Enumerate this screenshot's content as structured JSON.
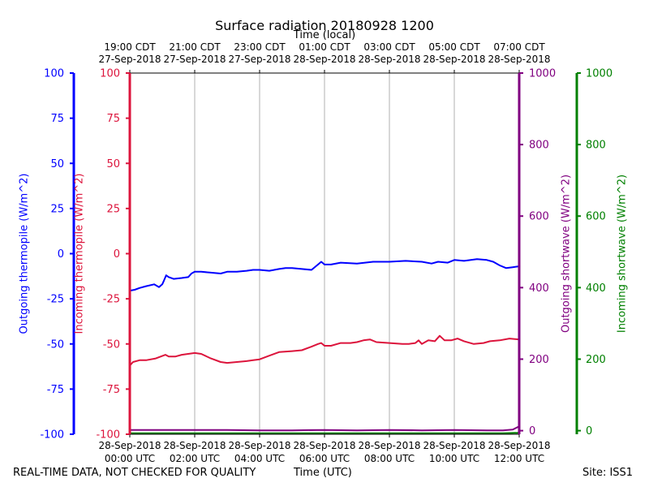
{
  "footer": {
    "disclaimer": "REAL-TIME DATA, NOT CHECKED FOR QUALITY",
    "xlabel": "Time (UTC)",
    "site": "Site: ISS1"
  },
  "chart_data": {
    "type": "line",
    "title": "Surface radiation 20180928 1200",
    "top_axis_label": "Time (local)",
    "xlabel": "Time (UTC)",
    "x_unit": "hours since 28-Sep-2018 00:00 UTC",
    "xlim": [
      0,
      12
    ],
    "grid": {
      "x": true,
      "y": false
    },
    "x_ticks_utc": [
      {
        "x": 0,
        "line1": "28-Sep-2018",
        "line2": "00:00 UTC"
      },
      {
        "x": 2,
        "line1": "28-Sep-2018",
        "line2": "02:00 UTC"
      },
      {
        "x": 4,
        "line1": "28-Sep-2018",
        "line2": "04:00 UTC"
      },
      {
        "x": 6,
        "line1": "28-Sep-2018",
        "line2": "06:00 UTC"
      },
      {
        "x": 8,
        "line1": "28-Sep-2018",
        "line2": "08:00 UTC"
      },
      {
        "x": 10,
        "line1": "28-Sep-2018",
        "line2": "10:00 UTC"
      },
      {
        "x": 12,
        "line1": "28-Sep-2018",
        "line2": "12:00 UTC"
      }
    ],
    "x_ticks_local": [
      {
        "x": 0,
        "line1": "19:00 CDT",
        "line2": "27-Sep-2018"
      },
      {
        "x": 2,
        "line1": "21:00 CDT",
        "line2": "27-Sep-2018"
      },
      {
        "x": 4,
        "line1": "23:00 CDT",
        "line2": "27-Sep-2018"
      },
      {
        "x": 6,
        "line1": "01:00 CDT",
        "line2": "28-Sep-2018"
      },
      {
        "x": 8,
        "line1": "03:00 CDT",
        "line2": "28-Sep-2018"
      },
      {
        "x": 10,
        "line1": "05:00 CDT",
        "line2": "28-Sep-2018"
      },
      {
        "x": 12,
        "line1": "07:00 CDT",
        "line2": "28-Sep-2018"
      }
    ],
    "axes": [
      {
        "id": "out_thermo",
        "label": "Outgoing thermopile (W/m^2)",
        "color": "#0000ff",
        "ylim": [
          -100,
          100
        ],
        "ticks": [
          100,
          75,
          50,
          25,
          0,
          -25,
          -50,
          -75,
          -100
        ]
      },
      {
        "id": "in_thermo",
        "label": "Incoming thermopile (W/m^2)",
        "color": "#dc143c",
        "ylim": [
          -100,
          100
        ],
        "ticks": [
          100,
          75,
          50,
          25,
          0,
          -25,
          -50,
          -75,
          -100
        ]
      },
      {
        "id": "out_sw",
        "label": "Outgoing shortwave (W/m^2)",
        "color": "#800080",
        "ylim": [
          -10,
          1000
        ],
        "ticks": [
          1000,
          800,
          600,
          400,
          200,
          0
        ]
      },
      {
        "id": "in_sw",
        "label": "Incoming shortwave (W/m^2)",
        "color": "#008000",
        "ylim": [
          -10,
          1000
        ],
        "ticks": [
          1000,
          800,
          600,
          400,
          200,
          0
        ]
      }
    ],
    "series": [
      {
        "name": "Outgoing thermopile",
        "axis": "out_thermo",
        "color": "#0000ff",
        "x": [
          0,
          0.15,
          0.3,
          0.5,
          0.75,
          0.9,
          1.0,
          1.05,
          1.12,
          1.2,
          1.35,
          1.6,
          1.8,
          1.9,
          2.0,
          2.2,
          2.5,
          2.8,
          3.0,
          3.3,
          3.6,
          3.8,
          4.0,
          4.3,
          4.6,
          4.8,
          5.0,
          5.3,
          5.6,
          5.8,
          5.9,
          6.0,
          6.2,
          6.5,
          7.0,
          7.5,
          8.0,
          8.5,
          9.0,
          9.3,
          9.5,
          9.8,
          10.0,
          10.3,
          10.7,
          11.0,
          11.2,
          11.4,
          11.6,
          11.8,
          12.0
        ],
        "y": [
          -20.5,
          -20,
          -19,
          -18,
          -17,
          -18.5,
          -17,
          -15,
          -12,
          -13,
          -14,
          -13.5,
          -13,
          -11,
          -10,
          -10,
          -10.5,
          -11,
          -10,
          -10,
          -9.5,
          -9,
          -9,
          -9.5,
          -8.5,
          -8,
          -8,
          -8.5,
          -9,
          -6,
          -4.5,
          -6,
          -6,
          -5,
          -5.5,
          -4.5,
          -4.5,
          -4,
          -4.5,
          -5.5,
          -4.5,
          -5,
          -3.5,
          -4,
          -3,
          -3.5,
          -4.5,
          -6.5,
          -8,
          -7.5,
          -7
        ]
      },
      {
        "name": "Incoming thermopile",
        "axis": "in_thermo",
        "color": "#dc143c",
        "x": [
          0,
          0.1,
          0.3,
          0.5,
          0.8,
          0.95,
          1.1,
          1.2,
          1.4,
          1.6,
          1.8,
          2.0,
          2.2,
          2.5,
          2.8,
          3.0,
          3.3,
          3.6,
          3.8,
          4.0,
          4.3,
          4.6,
          5.0,
          5.3,
          5.6,
          5.8,
          5.9,
          6.0,
          6.2,
          6.5,
          6.8,
          7.0,
          7.2,
          7.4,
          7.6,
          8.0,
          8.4,
          8.6,
          8.8,
          8.9,
          9.0,
          9.2,
          9.4,
          9.55,
          9.7,
          9.9,
          10.1,
          10.3,
          10.6,
          10.9,
          11.1,
          11.4,
          11.7,
          12.0
        ],
        "y": [
          -62,
          -60,
          -59,
          -59,
          -58,
          -57,
          -56,
          -57,
          -57,
          -56,
          -55.5,
          -55,
          -55.5,
          -58,
          -60,
          -60.5,
          -60,
          -59.5,
          -59,
          -58.5,
          -56.5,
          -54.5,
          -54,
          -53.5,
          -51.5,
          -50,
          -49.5,
          -51,
          -51,
          -49.5,
          -49.5,
          -49,
          -48,
          -47.5,
          -49,
          -49.5,
          -50,
          -50,
          -49.5,
          -48,
          -50,
          -48,
          -48.5,
          -45.5,
          -48,
          -48,
          -47,
          -48.5,
          -50,
          -49.5,
          -48.5,
          -48,
          -47,
          -47.5
        ]
      },
      {
        "name": "Outgoing shortwave",
        "axis": "out_sw",
        "color": "#800080",
        "x": [
          0,
          1,
          2,
          3,
          4,
          5,
          6,
          7,
          8,
          9,
          10,
          11,
          11.5,
          11.8,
          12.0
        ],
        "y": [
          2,
          2,
          2,
          2,
          1,
          1,
          2,
          1,
          2,
          1,
          2,
          1,
          1,
          3,
          12
        ]
      },
      {
        "name": "Incoming shortwave",
        "axis": "in_sw",
        "color": "#008000",
        "x": [
          0,
          2,
          4,
          6,
          8,
          10,
          11.5,
          12.0
        ],
        "y": [
          -7,
          -7,
          -7,
          -7,
          -7,
          -7,
          -7,
          -6
        ]
      }
    ]
  }
}
